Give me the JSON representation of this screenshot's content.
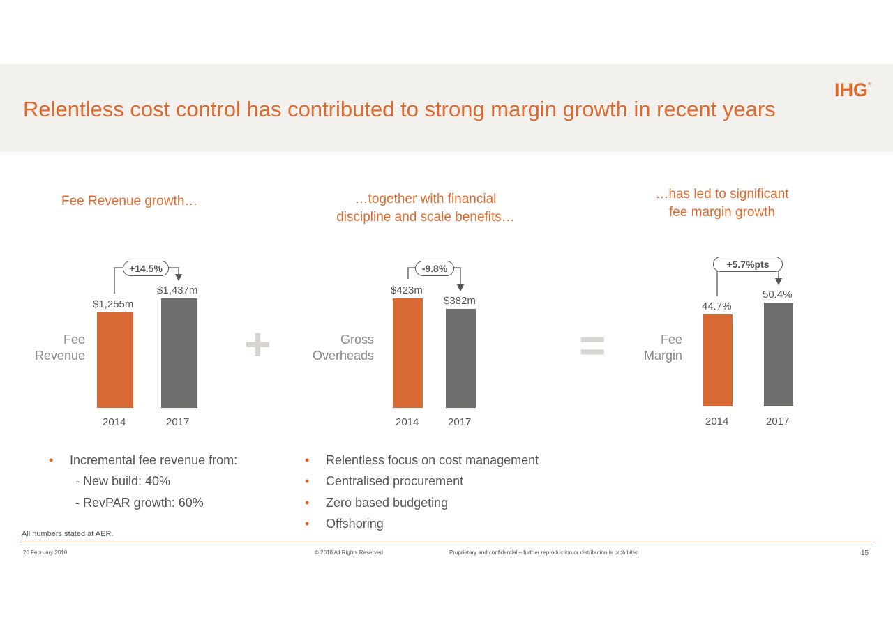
{
  "header": {
    "title": "Relentless cost control has contributed to strong margin growth in recent years",
    "logo_text": "IHG",
    "logo_mark": "®"
  },
  "colors": {
    "accent": "#e06a2e",
    "bar_2014": "#d96934",
    "bar_2017": "#6d6e6c",
    "header_bg": "#f2f1ee"
  },
  "panels": {
    "revenue": {
      "subhead": "Fee Revenue growth…",
      "row_label_1": "Fee",
      "row_label_2": "Revenue",
      "change": "+14.5%",
      "bars": [
        {
          "year": "2014",
          "label": "$1,255m",
          "value": 1255
        },
        {
          "year": "2017",
          "label": "$1,437m",
          "value": 1437
        }
      ]
    },
    "overheads": {
      "subhead_1": "…together with financial",
      "subhead_2": "discipline and scale benefits…",
      "row_label_1": "Gross",
      "row_label_2": "Overheads",
      "change": "-9.8%",
      "bars": [
        {
          "year": "2014",
          "label": "$423m",
          "value": 423
        },
        {
          "year": "2017",
          "label": "$382m",
          "value": 382
        }
      ]
    },
    "margin": {
      "subhead_1": "…has led to significant",
      "subhead_2": "fee margin growth",
      "row_label_1": "Fee",
      "row_label_2": "Margin",
      "change": "+5.7%pts",
      "bars": [
        {
          "year": "2014",
          "label": "44.7%",
          "value": 44.7
        },
        {
          "year": "2017",
          "label": "50.4%",
          "value": 50.4
        }
      ]
    }
  },
  "operators": {
    "plus": "+",
    "equals": "="
  },
  "bullets": {
    "left": {
      "main": "Incremental fee revenue from:",
      "sub": [
        "- New build: 40%",
        "- RevPAR growth: 60%"
      ]
    },
    "middle": [
      "Relentless focus on cost management",
      "Centralised procurement",
      "Zero based budgeting",
      "Offshoring"
    ],
    "marker": "•"
  },
  "footnote": "All numbers stated at AER.",
  "footer": {
    "date": "20 February 2018",
    "copyright": "© 2018 All Rights Reserved",
    "confidential": "Proprietary and confidential – further reproduction or distribution is prohibited",
    "page": "15"
  },
  "chart_data": [
    {
      "type": "bar",
      "categories": [
        "2014",
        "2017"
      ],
      "values": [
        1255,
        1437
      ],
      "title": "",
      "ylabel": "Fee Revenue"
    },
    {
      "type": "bar",
      "categories": [
        "2014",
        "2017"
      ],
      "values": [
        423,
        382
      ],
      "title": "",
      "ylabel": "Gross Overheads"
    },
    {
      "type": "bar",
      "categories": [
        "2014",
        "2017"
      ],
      "values": [
        44.7,
        50.4
      ],
      "title": "",
      "ylabel": "Fee Margin"
    }
  ]
}
